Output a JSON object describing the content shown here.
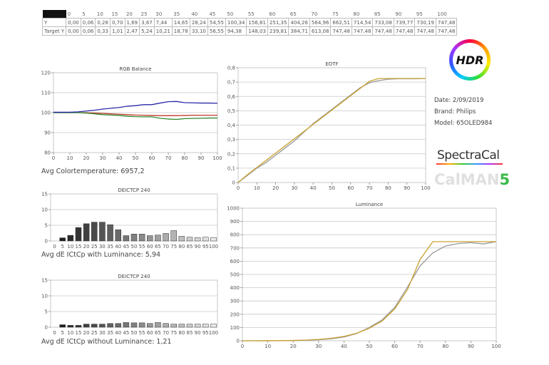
{
  "table": {
    "header": [
      "0",
      "5",
      "10",
      "15",
      "20",
      "25",
      "30",
      "35",
      "40",
      "45",
      "50",
      "55",
      "60",
      "65",
      "70",
      "75",
      "80",
      "85",
      "90",
      "95",
      "100"
    ],
    "rows": [
      {
        "label": "Y",
        "values": [
          "0,00",
          "0,06",
          "0,28",
          "0,70",
          "1,69",
          "3,67",
          "7,44",
          "14,65",
          "28,24",
          "54,55",
          "100,34",
          "156,81",
          "251,35",
          "404,26",
          "564,96",
          "662,51",
          "714,54",
          "733,08",
          "739,77",
          "730,19",
          "747,48"
        ]
      },
      {
        "label": "Target Y",
        "values": [
          "0,00",
          "0,06",
          "0,33",
          "1,01",
          "2,47",
          "5,24",
          "10,21",
          "18,78",
          "33,10",
          "56,55",
          "94,38",
          "148,03",
          "239,81",
          "384,71",
          "613,08",
          "747,48",
          "747,48",
          "747,48",
          "747,48",
          "747,48",
          "747,48"
        ]
      }
    ]
  },
  "captions": {
    "rgb": "Avg Colortemperature: 6957,2",
    "de_lum": "Avg dE ICtCp with Luminance: 5,94",
    "de_nolum": "Avg dE ICtCp without Luminance: 1,21"
  },
  "info": {
    "date": "Date: 2/09/2019",
    "brand": "Brand: Philips",
    "model": "Model: 65OLED984"
  },
  "logos": {
    "hdr": "HDR",
    "spectracal": "SpectraCal",
    "calman": "CalMAN",
    "calman_version": "5"
  },
  "colors": {
    "red": "#c0392b",
    "green": "#2e8b2e",
    "blue": "#2a2aa8",
    "measured": "#999999",
    "target": "#c9a232"
  },
  "chart_data": [
    {
      "type": "line",
      "title": "RGB Balance",
      "xlabel": "",
      "ylabel": "",
      "x": [
        0,
        5,
        10,
        15,
        20,
        25,
        30,
        35,
        40,
        45,
        50,
        55,
        60,
        65,
        70,
        75,
        80,
        85,
        90,
        95,
        100
      ],
      "xticks": [
        0,
        10,
        20,
        30,
        40,
        50,
        60,
        70,
        80,
        90,
        100
      ],
      "yticks": [
        80,
        90,
        100,
        110,
        120
      ],
      "ylim": [
        80,
        120
      ],
      "xlim": [
        0,
        100
      ],
      "grid": true,
      "series": [
        {
          "name": "Red",
          "color": "red",
          "values": [
            100,
            100,
            100,
            100,
            100,
            99.8,
            99.6,
            99.4,
            99.2,
            99,
            98.8,
            98.7,
            98.6,
            98.5,
            98.5,
            98.5,
            98.6,
            98.7,
            98.7,
            98.7,
            98.7
          ]
        },
        {
          "name": "Green",
          "color": "green",
          "values": [
            100,
            100,
            100,
            100,
            99.8,
            99.4,
            99,
            98.8,
            98.6,
            98.2,
            98,
            97.9,
            97.9,
            97.2,
            96.8,
            96.6,
            97,
            97.1,
            97.2,
            97.3,
            97.3
          ]
        },
        {
          "name": "Blue",
          "color": "blue",
          "values": [
            100.2,
            100.2,
            100.2,
            100.4,
            100.8,
            101.2,
            101.8,
            102.2,
            102.6,
            103.2,
            103.5,
            104,
            104,
            104.8,
            105.5,
            105.6,
            105,
            104.9,
            104.8,
            104.8,
            104.7
          ]
        }
      ]
    },
    {
      "type": "bar",
      "title": "DEICTCP 240",
      "subtitle": "with Luminance",
      "categories": [
        "0",
        "5",
        "10",
        "15",
        "20",
        "25",
        "30",
        "35",
        "40",
        "45",
        "50",
        "55",
        "60",
        "65",
        "70",
        "75",
        "80",
        "85",
        "90",
        "95",
        "100"
      ],
      "values": [
        0,
        1,
        1.8,
        4.3,
        5.5,
        6,
        6,
        5.2,
        3.6,
        1.7,
        2.2,
        2.2,
        1.7,
        1.9,
        2.4,
        3.3,
        1.5,
        1.2,
        1.1,
        1.2,
        1.1
      ],
      "yticks": [
        0,
        5,
        10,
        15
      ],
      "ylim": [
        0,
        15
      ],
      "grid": true
    },
    {
      "type": "bar",
      "title": "DEICTCP 240",
      "subtitle": "without Luminance",
      "categories": [
        "0",
        "5",
        "10",
        "15",
        "20",
        "25",
        "30",
        "35",
        "40",
        "45",
        "50",
        "55",
        "60",
        "65",
        "70",
        "75",
        "80",
        "85",
        "90",
        "95",
        "100"
      ],
      "values": [
        0,
        0.8,
        0.6,
        0.6,
        1,
        1,
        1,
        1.2,
        1.2,
        1.5,
        1.4,
        1.4,
        1.2,
        1.5,
        1.2,
        1,
        1,
        1,
        1,
        1,
        1
      ],
      "yticks": [
        0,
        5,
        10,
        15
      ],
      "ylim": [
        0,
        15
      ],
      "grid": true
    },
    {
      "type": "line",
      "title": "EOTF",
      "x": [
        0,
        5,
        10,
        15,
        20,
        25,
        30,
        35,
        40,
        45,
        50,
        55,
        60,
        65,
        70,
        75,
        80,
        85,
        90,
        95,
        100
      ],
      "xticks": [
        0,
        10,
        20,
        30,
        40,
        50,
        60,
        70,
        80,
        90,
        100
      ],
      "yticks": [
        "0",
        "0,1",
        "0,2",
        "0,3",
        "0,4",
        "0,5",
        "0,6",
        "0,7",
        "0,8"
      ],
      "ylim": [
        0,
        0.8
      ],
      "xlim": [
        0,
        100
      ],
      "grid": true,
      "series": [
        {
          "name": "Measured",
          "color": "measured",
          "values": [
            0,
            0.05,
            0.1,
            0.14,
            0.19,
            0.24,
            0.29,
            0.35,
            0.41,
            0.46,
            0.51,
            0.56,
            0.61,
            0.66,
            0.695,
            0.71,
            0.72,
            0.723,
            0.724,
            0.723,
            0.725
          ]
        },
        {
          "name": "Target",
          "color": "target",
          "values": [
            0,
            0.055,
            0.105,
            0.155,
            0.205,
            0.255,
            0.305,
            0.355,
            0.405,
            0.455,
            0.505,
            0.555,
            0.605,
            0.655,
            0.705,
            0.725,
            0.725,
            0.725,
            0.725,
            0.725,
            0.725
          ]
        }
      ]
    },
    {
      "type": "line",
      "title": "Luminance",
      "x": [
        0,
        5,
        10,
        15,
        20,
        25,
        30,
        35,
        40,
        45,
        50,
        55,
        60,
        65,
        70,
        75,
        80,
        85,
        90,
        95,
        100
      ],
      "xticks": [
        0,
        10,
        20,
        30,
        40,
        50,
        60,
        70,
        80,
        90,
        100
      ],
      "yticks": [
        0,
        100,
        200,
        300,
        400,
        500,
        600,
        700,
        800,
        900,
        1000
      ],
      "ylim": [
        0,
        1000
      ],
      "xlim": [
        0,
        100
      ],
      "grid": true,
      "series": [
        {
          "name": "Y",
          "color": "measured",
          "values": [
            0,
            0.06,
            0.28,
            0.7,
            1.69,
            3.67,
            7.44,
            14.65,
            28.24,
            54.55,
            100.34,
            156.81,
            251.35,
            404.26,
            564.96,
            662.51,
            714.54,
            733.08,
            739.77,
            730.19,
            747.48
          ]
        },
        {
          "name": "Target Y",
          "color": "target",
          "values": [
            0,
            0.06,
            0.33,
            1.01,
            2.47,
            5.24,
            10.21,
            18.78,
            33.1,
            56.55,
            94.38,
            148.03,
            239.81,
            384.71,
            613.08,
            747.48,
            747.48,
            747.48,
            747.48,
            747.48,
            747.48
          ]
        }
      ]
    }
  ]
}
